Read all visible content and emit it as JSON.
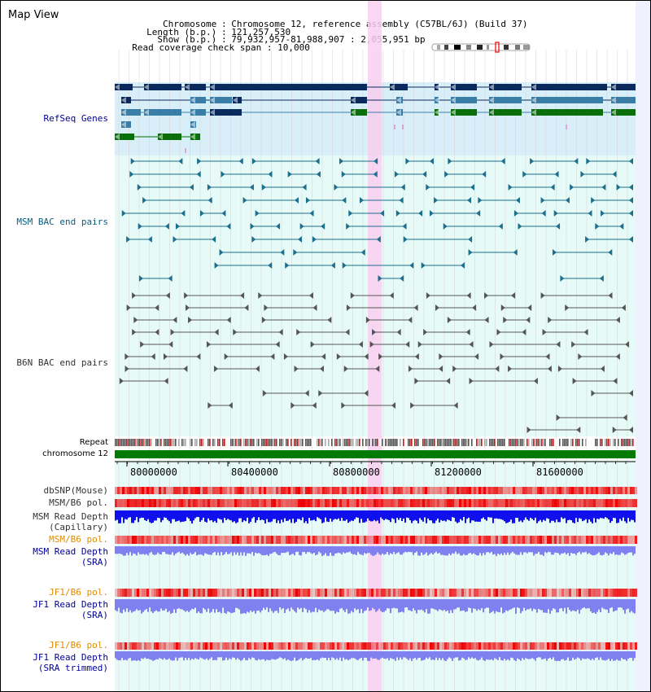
{
  "title": "Map View",
  "info": [
    {
      "label": "Chromosome",
      "value": "Chromosome 12, reference assembly (C57BL/6J) (Build 37)"
    },
    {
      "label": "Length (b.p.)",
      "value": "121,257,530"
    },
    {
      "label": "Show (b.p.)",
      "value": "79,932,957-81,988,907 : 2,055,951 bp"
    },
    {
      "label": "Read coverage check span",
      "value": "10,000"
    }
  ],
  "tracks": {
    "refseq": "RefSeq Genes",
    "msm_bac": "MSM BAC end pairs",
    "b6n_bac": "B6N BAC end pairs",
    "repeat": "Repeat",
    "chromosome": "chromosome 12",
    "dbsnp": "dbSNP(Mouse)",
    "msm_b6_pol": "MSM/B6 pol.",
    "msm_read_depth_cap": "MSM Read Depth\n(Capillary)",
    "msm_b6_pol_sra": "MSM/B6 pol.",
    "msm_read_depth_sra": "MSM Read Depth\n(SRA)",
    "jf1_b6_pol": "JF1/B6 pol.",
    "jf1_read_depth_sra": "JF1 Read Depth\n(SRA)",
    "jf1_b6_pol_trim": "JF1/B6 pol.",
    "jf1_read_depth_trim": "JF1 Read Depth\n(SRA trimmed)"
  },
  "axis": {
    "ticks": [
      "80000000",
      "80400000",
      "80800000",
      "81200000",
      "81600000"
    ]
  },
  "colors": {
    "gene_dark": "#0a2a5e",
    "gene_mid": "#3a7ea8",
    "gene_green": "#0a6e0a",
    "refseq_bg": "#d8eef8",
    "bac_bg": "#e6fbf8",
    "msm_bac_line": "#1d6f8e",
    "b6n_bac_line": "#555555",
    "highlight": "#f8cfee",
    "track_label_blue": "#000099",
    "track_label_teal": "#0a5c7c",
    "track_label_orange": "#e08c00",
    "chromosome_bar": "#007a00",
    "read_depth_blue": "#1010ee",
    "read_depth_light": "#8080f0"
  }
}
